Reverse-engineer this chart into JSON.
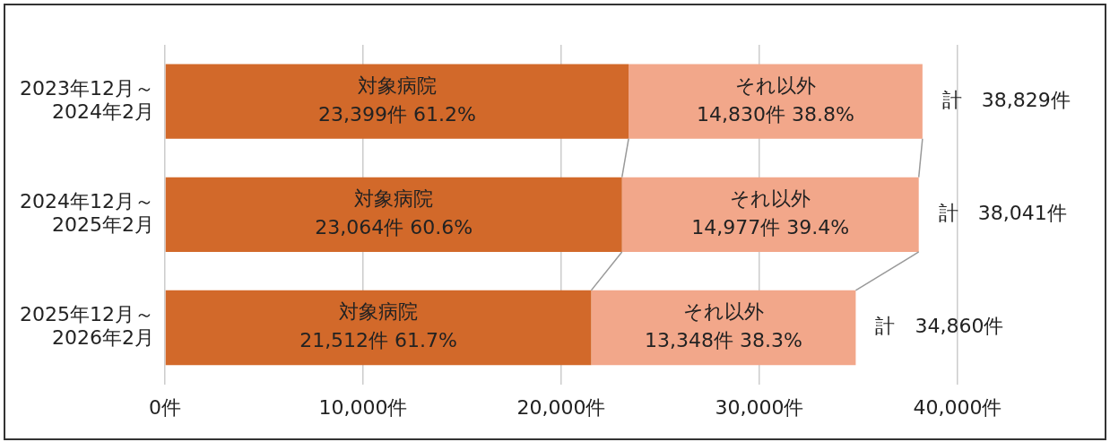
{
  "chart_data": {
    "type": "bar",
    "orientation": "horizontal",
    "stacked": true,
    "categories": [
      "2023年12月～2024年2月",
      "2024年12月～2025年2月",
      "2025年12月～2026年2月"
    ],
    "series": [
      {
        "name": "対象病院",
        "color": "#d2692a",
        "values": [
          23399,
          23064,
          21512
        ],
        "value_labels": [
          "23,399件 61.2%",
          "23,064件 60.6%",
          "21,512件 61.7%"
        ]
      },
      {
        "name": "それ以外",
        "color": "#f2a78a",
        "values": [
          14830,
          14977,
          13348
        ],
        "value_labels": [
          "14,830件 38.8%",
          "14,977件 39.4%",
          "13,348件 38.3%"
        ]
      }
    ],
    "totals": [
      "計　38,829件",
      "計　38,041件",
      "計　34,860件"
    ],
    "xlim": [
      0,
      40000
    ],
    "xticks": [
      {
        "value": 0,
        "label": "0件"
      },
      {
        "value": 10000,
        "label": "10,000件"
      },
      {
        "value": 20000,
        "label": "20,000件"
      },
      {
        "value": 30000,
        "label": "30,000件"
      },
      {
        "value": 40000,
        "label": "40,000件"
      }
    ],
    "grid": "x",
    "legend": false
  }
}
